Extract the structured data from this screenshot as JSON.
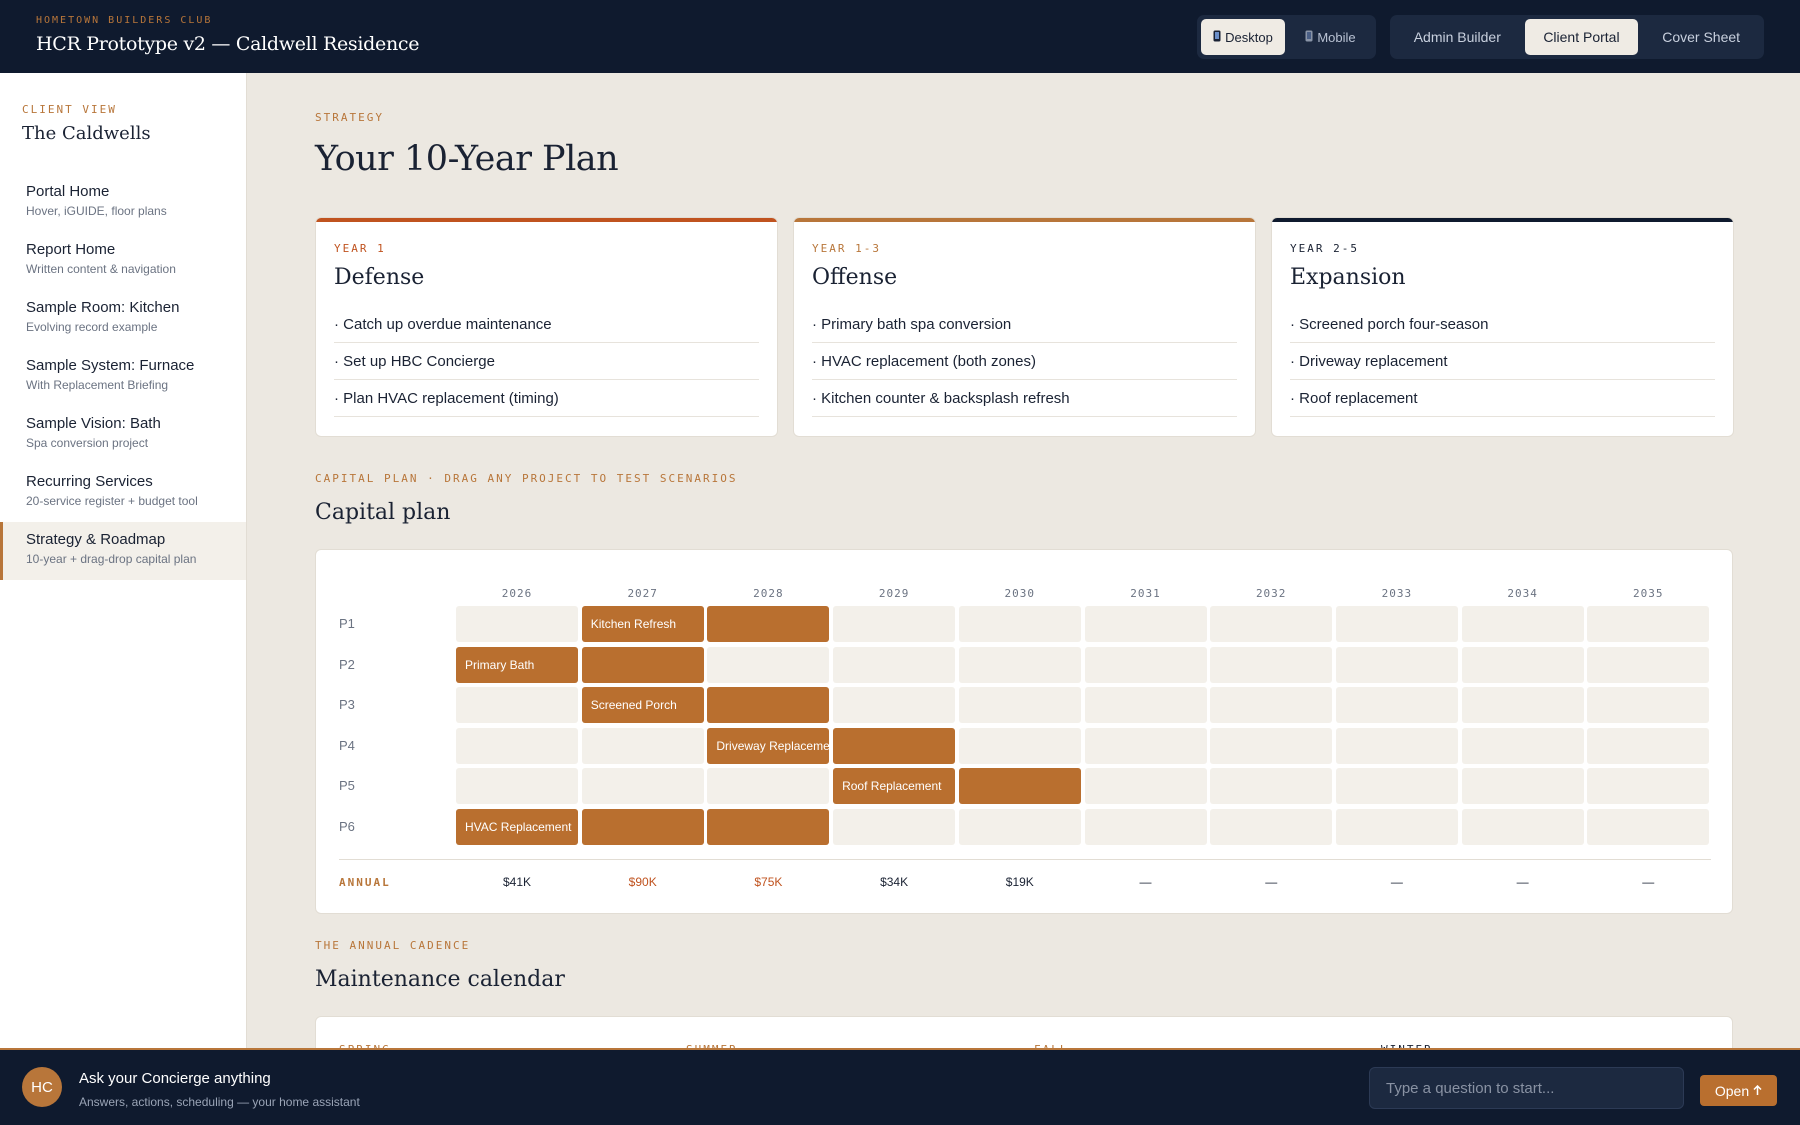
{
  "header": {
    "kicker": "HOMETOWN BUILDERS CLUB",
    "title": "HCR Prototype v2 — Caldwell Residence",
    "device": {
      "desktop": {
        "icon": "phone-icon",
        "label": "Desktop"
      },
      "mobile": {
        "icon": "phone-icon",
        "label": "Mobile"
      }
    },
    "tabs": [
      "Admin Builder",
      "Client Portal",
      "Cover Sheet"
    ]
  },
  "sidebar": {
    "kicker": "CLIENT VIEW",
    "title": "The Caldwells",
    "items": [
      {
        "label": "Portal Home",
        "sub": "Hover, iGUIDE, floor plans"
      },
      {
        "label": "Report Home",
        "sub": "Written content & navigation"
      },
      {
        "label": "Sample Room: Kitchen",
        "sub": "Evolving record example"
      },
      {
        "label": "Sample System: Furnace",
        "sub": "With Replacement Briefing"
      },
      {
        "label": "Sample Vision: Bath",
        "sub": "Spa conversion project"
      },
      {
        "label": "Recurring Services",
        "sub": "20-service register + budget tool"
      },
      {
        "label": "Strategy & Roadmap",
        "sub": "10-year + drag-drop capital plan"
      }
    ]
  },
  "strategy": {
    "kicker": "STRATEGY",
    "title": "Your 10-Year Plan",
    "phases": [
      {
        "kicker": "YEAR 1",
        "title": "Defense",
        "color": "#c0531f",
        "items": [
          "· Catch up overdue maintenance",
          "· Set up HBC Concierge",
          "· Plan HVAC replacement (timing)"
        ]
      },
      {
        "kicker": "YEAR 1-3",
        "title": "Offense",
        "color": "#b8763a",
        "items": [
          "· Primary bath spa conversion",
          "· HVAC replacement (both zones)",
          "· Kitchen counter & backsplash refresh"
        ]
      },
      {
        "kicker": "YEAR 2-5",
        "title": "Expansion",
        "color": "#0f1a2e",
        "items": [
          "· Screened porch four-season",
          "· Driveway replacement",
          "· Roof replacement"
        ]
      }
    ]
  },
  "capital_plan": {
    "kicker": "CAPITAL PLAN · DRAG ANY PROJECT TO TEST SCENARIOS",
    "title": "Capital plan",
    "years": [
      "2026",
      "2027",
      "2028",
      "2029",
      "2030",
      "2031",
      "2032",
      "2033",
      "2034",
      "2035"
    ],
    "rows": [
      {
        "label": "P1",
        "project": "Kitchen Refresh",
        "start": 1,
        "span": 2
      },
      {
        "label": "P2",
        "project": "Primary Bath",
        "start": 0,
        "span": 2
      },
      {
        "label": "P3",
        "project": "Screened Porch",
        "start": 1,
        "span": 2
      },
      {
        "label": "P4",
        "project": "Driveway Replacement",
        "start": 2,
        "span": 2
      },
      {
        "label": "P5",
        "project": "Roof Replacement",
        "start": 3,
        "span": 2
      },
      {
        "label": "P6",
        "project": "HVAC Replacement",
        "start": 0,
        "span": 3
      }
    ],
    "annual_label": "ANNUAL",
    "annual": [
      {
        "value": "$41K",
        "hot": false
      },
      {
        "value": "$90K",
        "hot": true
      },
      {
        "value": "$75K",
        "hot": true
      },
      {
        "value": "$34K",
        "hot": false
      },
      {
        "value": "$19K",
        "hot": false
      },
      {
        "value": "—",
        "hot": false
      },
      {
        "value": "—",
        "hot": false
      },
      {
        "value": "—",
        "hot": false
      },
      {
        "value": "—",
        "hot": false
      },
      {
        "value": "—",
        "hot": false
      }
    ]
  },
  "calendar": {
    "kicker": "THE ANNUAL CADENCE",
    "title": "Maintenance calendar",
    "seasons": [
      {
        "label": "SPRING",
        "color": "#b8763a"
      },
      {
        "label": "SUMMER",
        "color": "#b8763a"
      },
      {
        "label": "FALL",
        "color": "#b8763a"
      },
      {
        "label": "WINTER",
        "color": "#1a2233"
      }
    ]
  },
  "concierge": {
    "initials": "HC",
    "title": "Ask your Concierge anything",
    "subtitle": "Answers, actions, scheduling — your home assistant",
    "placeholder": "Type a question to start...",
    "open_label": "Open",
    "open_icon": "arrow-up-icon"
  },
  "colors": {
    "navy": "#0f1a2e",
    "copper": "#b96f2f",
    "accent": "#b8763a",
    "hot": "#c0531f",
    "paper": "#ece8e1"
  }
}
